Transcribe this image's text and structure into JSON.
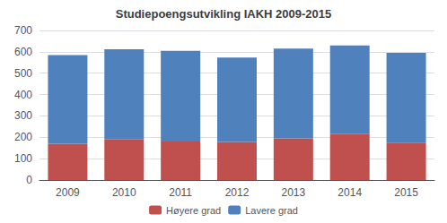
{
  "chart_data": {
    "type": "bar",
    "stacked": true,
    "title": "Studiepoengsutvikling IAKH 2009-2015",
    "categories": [
      "2009",
      "2010",
      "2011",
      "2012",
      "2013",
      "2014",
      "2015"
    ],
    "series": [
      {
        "name": "Høyere grad",
        "color": "#c0504d",
        "values": [
          170,
          190,
          180,
          178,
          195,
          215,
          175
        ]
      },
      {
        "name": "Lavere grad",
        "color": "#4f81bd",
        "values": [
          415,
          422,
          425,
          395,
          420,
          415,
          420
        ]
      }
    ],
    "ylim": [
      0,
      700
    ],
    "yticks": [
      0,
      100,
      200,
      300,
      400,
      500,
      600,
      700
    ],
    "grid": true,
    "legend": "bottom"
  }
}
